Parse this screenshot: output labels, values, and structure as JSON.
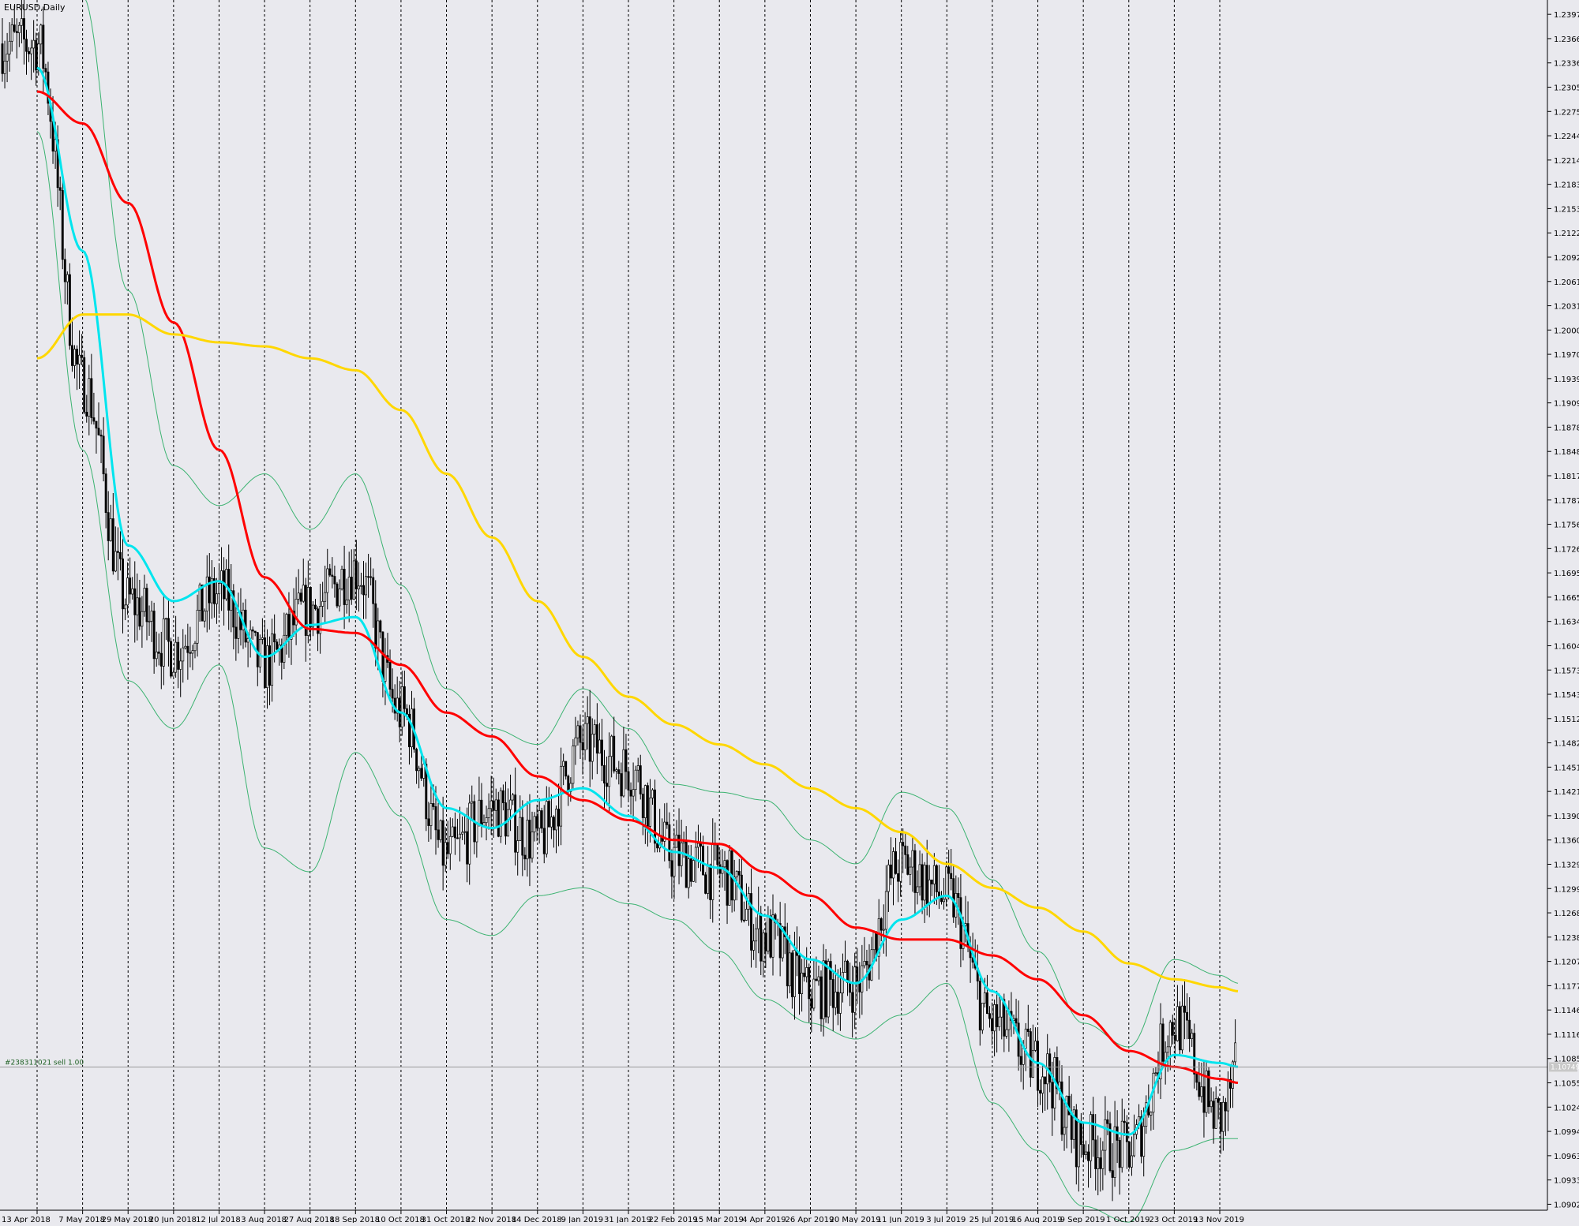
{
  "window": {
    "title": "EURUSD,Daily"
  },
  "trade_line": {
    "label": "#238311021 sell 1.00",
    "price_tag": "1.10749"
  },
  "colors": {
    "background": "#e9e9ee",
    "candle": "#000000",
    "ma_fast": "#00e5ee",
    "ma_mid": "#ff0000",
    "ma_slow": "#ffd700",
    "bollinger": "#3cb371",
    "trade_line": "#3cb371"
  },
  "chart_data": {
    "type": "line",
    "symbol": "EURUSD",
    "timeframe": "Daily",
    "title": "EURUSD,Daily",
    "ylim": [
      1.0895,
      1.2415
    ],
    "y_ticks": [
      "1.23970",
      "1.23665",
      "1.23360",
      "1.23055",
      "1.22750",
      "1.22445",
      "1.22140",
      "1.21835",
      "1.21530",
      "1.21225",
      "1.20920",
      "1.20615",
      "1.20310",
      "1.20005",
      "1.19700",
      "1.19395",
      "1.19090",
      "1.18785",
      "1.18480",
      "1.18175",
      "1.17870",
      "1.17565",
      "1.17260",
      "1.16955",
      "1.16650",
      "1.16345",
      "1.16040",
      "1.15735",
      "1.15430",
      "1.15125",
      "1.14820",
      "1.14515",
      "1.14210",
      "1.13905",
      "1.13600",
      "1.13295",
      "1.12990",
      "1.12685",
      "1.12380",
      "1.12075",
      "1.11770",
      "1.11465",
      "1.11160",
      "1.10855",
      "1.10550",
      "1.10245",
      "1.09940",
      "1.09635",
      "1.09330",
      "1.09025"
    ],
    "x_ticks": [
      "13 Apr 2018",
      "7 May 2018",
      "29 May 2018",
      "20 Jun 2018",
      "12 Jul 2018",
      "3 Aug 2018",
      "27 Aug 2018",
      "18 Sep 2018",
      "10 Oct 2018",
      "31 Oct 2018",
      "22 Nov 2018",
      "14 Dec 2018",
      "9 Jan 2019",
      "31 Jan 2019",
      "22 Feb 2019",
      "15 Mar 2019",
      "4 Apr 2019",
      "26 Apr 2019",
      "20 May 2019",
      "11 Jun 2019",
      "3 Jul 2019",
      "25 Jul 2019",
      "16 Aug 2019",
      "9 Sep 2019",
      "1 Oct 2019",
      "23 Oct 2019",
      "13 Nov 2019"
    ],
    "grid": "vertical dashed at each date label",
    "close_path": [
      [
        "13 Apr 2018",
        1.236
      ],
      [
        "7 May 2018",
        1.1935
      ],
      [
        "29 May 2018",
        1.166
      ],
      [
        "20 Jun 2018",
        1.16
      ],
      [
        "12 Jul 2018",
        1.167
      ],
      [
        "3 Aug 2018",
        1.158
      ],
      [
        "27 Aug 2018",
        1.165
      ],
      [
        "18 Sep 2018",
        1.17
      ],
      [
        "10 Oct 2018",
        1.152
      ],
      [
        "31 Oct 2018",
        1.134
      ],
      [
        "22 Nov 2018",
        1.14
      ],
      [
        "14 Dec 2018",
        1.136
      ],
      [
        "9 Jan 2019",
        1.148
      ],
      [
        "31 Jan 2019",
        1.145
      ],
      [
        "22 Feb 2019",
        1.134
      ],
      [
        "15 Mar 2019",
        1.132
      ],
      [
        "4 Apr 2019",
        1.124
      ],
      [
        "26 Apr 2019",
        1.117
      ],
      [
        "20 May 2019",
        1.118
      ],
      [
        "11 Jun 2019",
        1.133
      ],
      [
        "3 Jul 2019",
        1.129
      ],
      [
        "25 Jul 2019",
        1.113
      ],
      [
        "16 Aug 2019",
        1.108
      ],
      [
        "9 Sep 2019",
        1.098
      ],
      [
        "1 Oct 2019",
        1.097
      ],
      [
        "23 Oct 2019",
        1.113
      ],
      [
        "13 Nov 2019",
        1.101
      ],
      [
        "20 Nov 2019",
        1.1075
      ]
    ],
    "series": [
      {
        "id": "ma_fast",
        "color": "#00e5ee",
        "values": [
          [
            "13 Apr 2018",
            1.233
          ],
          [
            "7 May 2018",
            1.21
          ],
          [
            "29 May 2018",
            1.173
          ],
          [
            "20 Jun 2018",
            1.166
          ],
          [
            "12 Jul 2018",
            1.1685
          ],
          [
            "3 Aug 2018",
            1.159
          ],
          [
            "27 Aug 2018",
            1.163
          ],
          [
            "18 Sep 2018",
            1.164
          ],
          [
            "10 Oct 2018",
            1.152
          ],
          [
            "31 Oct 2018",
            1.14
          ],
          [
            "22 Nov 2018",
            1.1375
          ],
          [
            "14 Dec 2018",
            1.141
          ],
          [
            "9 Jan 2019",
            1.1425
          ],
          [
            "31 Jan 2019",
            1.139
          ],
          [
            "22 Feb 2019",
            1.1345
          ],
          [
            "15 Mar 2019",
            1.1325
          ],
          [
            "4 Apr 2019",
            1.1265
          ],
          [
            "26 Apr 2019",
            1.121
          ],
          [
            "20 May 2019",
            1.118
          ],
          [
            "11 Jun 2019",
            1.126
          ],
          [
            "3 Jul 2019",
            1.129
          ],
          [
            "25 Jul 2019",
            1.117
          ],
          [
            "16 Aug 2019",
            1.108
          ],
          [
            "9 Sep 2019",
            1.1005
          ],
          [
            "1 Oct 2019",
            1.099
          ],
          [
            "23 Oct 2019",
            1.109
          ],
          [
            "13 Nov 2019",
            1.108
          ],
          [
            "20 Nov 2019",
            1.1075
          ]
        ]
      },
      {
        "id": "ma_mid",
        "color": "#ff0000",
        "values": [
          [
            "13 Apr 2018",
            1.23
          ],
          [
            "7 May 2018",
            1.226
          ],
          [
            "29 May 2018",
            1.216
          ],
          [
            "20 Jun 2018",
            1.201
          ],
          [
            "12 Jul 2018",
            1.185
          ],
          [
            "3 Aug 2018",
            1.169
          ],
          [
            "27 Aug 2018",
            1.1625
          ],
          [
            "18 Sep 2018",
            1.162
          ],
          [
            "10 Oct 2018",
            1.158
          ],
          [
            "31 Oct 2018",
            1.152
          ],
          [
            "22 Nov 2018",
            1.149
          ],
          [
            "14 Dec 2018",
            1.144
          ],
          [
            "9 Jan 2019",
            1.141
          ],
          [
            "31 Jan 2019",
            1.1385
          ],
          [
            "22 Feb 2019",
            1.136
          ],
          [
            "15 Mar 2019",
            1.1355
          ],
          [
            "4 Apr 2019",
            1.132
          ],
          [
            "26 Apr 2019",
            1.129
          ],
          [
            "20 May 2019",
            1.125
          ],
          [
            "11 Jun 2019",
            1.1235
          ],
          [
            "3 Jul 2019",
            1.1235
          ],
          [
            "25 Jul 2019",
            1.1215
          ],
          [
            "16 Aug 2019",
            1.1185
          ],
          [
            "9 Sep 2019",
            1.114
          ],
          [
            "1 Oct 2019",
            1.1095
          ],
          [
            "23 Oct 2019",
            1.1075
          ],
          [
            "13 Nov 2019",
            1.106
          ],
          [
            "20 Nov 2019",
            1.1055
          ]
        ]
      },
      {
        "id": "ma_slow",
        "color": "#ffd700",
        "values": [
          [
            "13 Apr 2018",
            1.1965
          ],
          [
            "7 May 2018",
            1.202
          ],
          [
            "29 May 2018",
            1.202
          ],
          [
            "20 Jun 2018",
            1.1995
          ],
          [
            "12 Jul 2018",
            1.1985
          ],
          [
            "3 Aug 2018",
            1.198
          ],
          [
            "27 Aug 2018",
            1.1965
          ],
          [
            "18 Sep 2018",
            1.195
          ],
          [
            "10 Oct 2018",
            1.19
          ],
          [
            "31 Oct 2018",
            1.182
          ],
          [
            "22 Nov 2018",
            1.174
          ],
          [
            "14 Dec 2018",
            1.166
          ],
          [
            "9 Jan 2019",
            1.159
          ],
          [
            "31 Jan 2019",
            1.154
          ],
          [
            "22 Feb 2019",
            1.1505
          ],
          [
            "15 Mar 2019",
            1.148
          ],
          [
            "4 Apr 2019",
            1.1455
          ],
          [
            "26 Apr 2019",
            1.1425
          ],
          [
            "20 May 2019",
            1.14
          ],
          [
            "11 Jun 2019",
            1.137
          ],
          [
            "3 Jul 2019",
            1.133
          ],
          [
            "25 Jul 2019",
            1.13
          ],
          [
            "16 Aug 2019",
            1.1275
          ],
          [
            "9 Sep 2019",
            1.1245
          ],
          [
            "1 Oct 2019",
            1.1205
          ],
          [
            "23 Oct 2019",
            1.1185
          ],
          [
            "13 Nov 2019",
            1.1175
          ],
          [
            "20 Nov 2019",
            1.117
          ]
        ]
      },
      {
        "id": "bb_upper",
        "color": "#3cb371",
        "values": [
          [
            "13 Apr 2018",
            1.242
          ],
          [
            "7 May 2018",
            1.242
          ],
          [
            "29 May 2018",
            1.205
          ],
          [
            "20 Jun 2018",
            1.183
          ],
          [
            "12 Jul 2018",
            1.178
          ],
          [
            "3 Aug 2018",
            1.182
          ],
          [
            "27 Aug 2018",
            1.175
          ],
          [
            "18 Sep 2018",
            1.182
          ],
          [
            "10 Oct 2018",
            1.168
          ],
          [
            "31 Oct 2018",
            1.155
          ],
          [
            "22 Nov 2018",
            1.15
          ],
          [
            "14 Dec 2018",
            1.148
          ],
          [
            "9 Jan 2019",
            1.155
          ],
          [
            "31 Jan 2019",
            1.15
          ],
          [
            "22 Feb 2019",
            1.143
          ],
          [
            "15 Mar 2019",
            1.142
          ],
          [
            "4 Apr 2019",
            1.141
          ],
          [
            "26 Apr 2019",
            1.136
          ],
          [
            "20 May 2019",
            1.133
          ],
          [
            "11 Jun 2019",
            1.142
          ],
          [
            "3 Jul 2019",
            1.14
          ],
          [
            "25 Jul 2019",
            1.131
          ],
          [
            "16 Aug 2019",
            1.122
          ],
          [
            "9 Sep 2019",
            1.113
          ],
          [
            "1 Oct 2019",
            1.11
          ],
          [
            "23 Oct 2019",
            1.121
          ],
          [
            "13 Nov 2019",
            1.119
          ],
          [
            "20 Nov 2019",
            1.118
          ]
        ]
      },
      {
        "id": "bb_lower",
        "color": "#3cb371",
        "values": [
          [
            "13 Apr 2018",
            1.225
          ],
          [
            "7 May 2018",
            1.185
          ],
          [
            "29 May 2018",
            1.156
          ],
          [
            "20 Jun 2018",
            1.15
          ],
          [
            "12 Jul 2018",
            1.158
          ],
          [
            "3 Aug 2018",
            1.135
          ],
          [
            "27 Aug 2018",
            1.132
          ],
          [
            "18 Sep 2018",
            1.147
          ],
          [
            "10 Oct 2018",
            1.139
          ],
          [
            "31 Oct 2018",
            1.126
          ],
          [
            "22 Nov 2018",
            1.124
          ],
          [
            "14 Dec 2018",
            1.129
          ],
          [
            "9 Jan 2019",
            1.13
          ],
          [
            "31 Jan 2019",
            1.128
          ],
          [
            "22 Feb 2019",
            1.126
          ],
          [
            "15 Mar 2019",
            1.122
          ],
          [
            "4 Apr 2019",
            1.116
          ],
          [
            "26 Apr 2019",
            1.113
          ],
          [
            "20 May 2019",
            1.111
          ],
          [
            "11 Jun 2019",
            1.114
          ],
          [
            "3 Jul 2019",
            1.118
          ],
          [
            "25 Jul 2019",
            1.103
          ],
          [
            "16 Aug 2019",
            1.097
          ],
          [
            "9 Sep 2019",
            1.09
          ],
          [
            "1 Oct 2019",
            1.088
          ],
          [
            "23 Oct 2019",
            1.097
          ],
          [
            "13 Nov 2019",
            1.0985
          ],
          [
            "20 Nov 2019",
            1.0985
          ]
        ]
      }
    ],
    "trade_level": 1.10749,
    "current_price": 1.10749
  }
}
